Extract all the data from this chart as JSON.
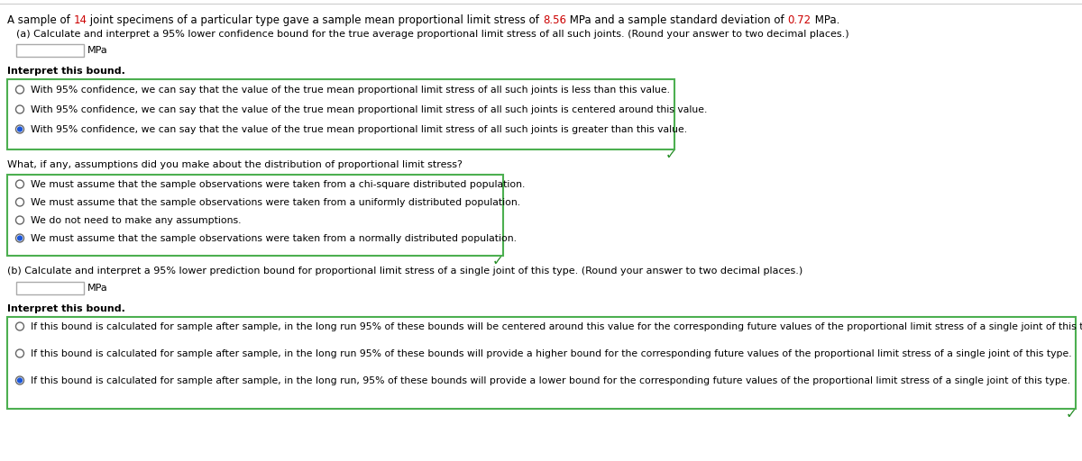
{
  "bg_color": "#ffffff",
  "text_color": "#000000",
  "highlight_color": "#cc0000",
  "green_color": "#228B22",
  "border_color": "#4caf50",
  "radio_fill": "#1a56db",
  "intro_parts": [
    {
      "text": "A sample of ",
      "highlight": false
    },
    {
      "text": "14",
      "highlight": true
    },
    {
      "text": " joint specimens of a particular type gave a sample mean proportional limit stress of ",
      "highlight": false
    },
    {
      "text": "8.56",
      "highlight": true
    },
    {
      "text": " MPa and a sample standard deviation of ",
      "highlight": false
    },
    {
      "text": "0.72",
      "highlight": true
    },
    {
      "text": " MPa.",
      "highlight": false
    }
  ],
  "part_a_label": "(a) Calculate and interpret a 95% lower confidence bound for the true average proportional limit stress of all such joints. (Round your answer to two decimal places.)",
  "part_a_unit": "MPa",
  "interpret_a_label": "Interpret this bound.",
  "options_a": [
    "With 95% confidence, we can say that the value of the true mean proportional limit stress of all such joints is less than this value.",
    "With 95% confidence, we can say that the value of the true mean proportional limit stress of all such joints is centered around this value.",
    "With 95% confidence, we can say that the value of the true mean proportional limit stress of all such joints is greater than this value."
  ],
  "selected_a": 2,
  "assumptions_label": "What, if any, assumptions did you make about the distribution of proportional limit stress?",
  "options_assumptions": [
    "We must assume that the sample observations were taken from a chi-square distributed population.",
    "We must assume that the sample observations were taken from a uniformly distributed population.",
    "We do not need to make any assumptions.",
    "We must assume that the sample observations were taken from a normally distributed population."
  ],
  "selected_assumptions": 3,
  "part_b_label": "(b) Calculate and interpret a 95% lower prediction bound for proportional limit stress of a single joint of this type. (Round your answer to two decimal places.)",
  "part_b_unit": "MPa",
  "interpret_b_label": "Interpret this bound.",
  "options_b": [
    "If this bound is calculated for sample after sample, in the long run 95% of these bounds will be centered around this value for the corresponding future values of the proportional limit stress of a single joint of this type.",
    "If this bound is calculated for sample after sample, in the long run 95% of these bounds will provide a higher bound for the corresponding future values of the proportional limit stress of a single joint of this type.",
    "If this bound is calculated for sample after sample, in the long run, 95% of these bounds will provide a lower bound for the corresponding future values of the proportional limit stress of a single joint of this type."
  ],
  "selected_b": 2
}
